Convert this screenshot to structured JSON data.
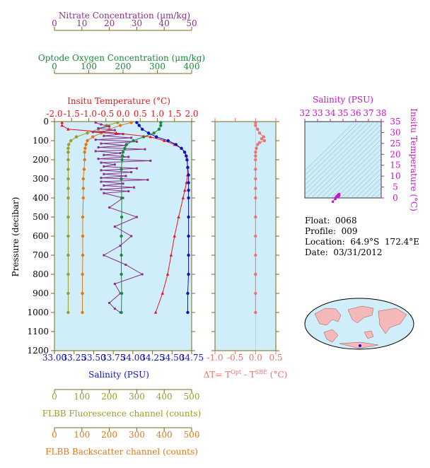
{
  "float_info": {
    "float": "Float:  0068",
    "profile": "Profile:  009",
    "location": "Location:  64.9°S  172.4°E",
    "date": "Date:  03/31/2012"
  },
  "colors": {
    "nitrate": "#8b2f8b",
    "oxygen": "#1a8a3a",
    "temperature": "#e8141e",
    "salinity": "#1212c0",
    "fluorescence": "#9c9c2c",
    "backscatter": "#e07818",
    "delta_t": "#f07070",
    "ts": "#c814c8",
    "panel_bg": "#cfeefa",
    "axis": "#7a6a1a"
  },
  "chart_data": [
    {
      "type": "line",
      "panel": "main-profile",
      "ylabel": "Pressure (decibar)",
      "ylim": [
        0,
        1200
      ],
      "yticks": [
        "0",
        "100",
        "200",
        "300",
        "400",
        "500",
        "600",
        "700",
        "800",
        "900",
        "1000",
        "1100",
        "1200"
      ],
      "axes": {
        "nitrate": {
          "label": "Nitrate Concentration (μm/kg)",
          "ticks": [
            "0",
            "10",
            "20",
            "30",
            "40",
            "50"
          ],
          "range": [
            0,
            50
          ]
        },
        "oxygen": {
          "label": "Optode Oxygen Concentration (μm/kg)",
          "ticks": [
            "0",
            "100",
            "200",
            "300",
            "400"
          ],
          "range": [
            0,
            400
          ]
        },
        "temperature": {
          "label": "Insitu Temperature (°C)",
          "ticks": [
            "-2.0",
            "-1.5",
            "-1.0",
            "-0.5",
            "0.0",
            "0.5",
            "1.0",
            "1.5",
            "2.0"
          ],
          "range": [
            -2.0,
            2.0
          ]
        },
        "salinity": {
          "label": "Salinity (PSU)",
          "ticks": [
            "33.00",
            "33.25",
            "33.50",
            "33.75",
            "34.00",
            "34.25",
            "34.50",
            "34.75"
          ],
          "range": [
            33.0,
            34.75
          ]
        },
        "fluorescence": {
          "label": "FLBB Fluorescence channel (counts)",
          "ticks": [
            "0",
            "100",
            "200",
            "300",
            "400",
            "500"
          ],
          "range": [
            0,
            500
          ]
        },
        "backscatter": {
          "label": "FLBB Backscatter channel (counts)",
          "ticks": [
            "0",
            "100",
            "200",
            "300",
            "400",
            "500"
          ],
          "range": [
            0,
            500
          ]
        }
      },
      "series": [
        {
          "name": "Salinity",
          "axis": "salinity",
          "pressure": [
            5,
            20,
            40,
            60,
            80,
            100,
            120,
            140,
            160,
            180,
            200,
            240,
            280,
            320,
            360,
            400,
            500,
            600,
            700,
            800,
            900,
            1000
          ],
          "values": [
            34.05,
            34.08,
            34.12,
            34.2,
            34.3,
            34.45,
            34.55,
            34.62,
            34.66,
            34.68,
            34.69,
            34.7,
            34.71,
            34.71,
            34.71,
            34.71,
            34.71,
            34.71,
            34.71,
            34.71,
            34.7,
            34.7
          ]
        },
        {
          "name": "Temperature",
          "axis": "temperature",
          "pressure": [
            5,
            20,
            40,
            60,
            80,
            100,
            120,
            140,
            160,
            180,
            200,
            240,
            280,
            320,
            360,
            400,
            500,
            600,
            700,
            800,
            900,
            1000
          ],
          "values": [
            -1.78,
            -1.78,
            -1.6,
            -0.2,
            0.8,
            1.2,
            1.5,
            1.7,
            1.8,
            1.85,
            1.87,
            1.88,
            1.88,
            1.85,
            1.8,
            1.75,
            1.62,
            1.5,
            1.4,
            1.3,
            1.15,
            0.95
          ]
        },
        {
          "name": "Oxygen",
          "axis": "oxygen",
          "pressure": [
            5,
            20,
            40,
            60,
            80,
            100,
            120,
            140,
            160,
            180,
            200,
            250,
            300,
            400,
            500,
            600,
            700,
            800,
            900,
            1000
          ],
          "values": [
            310,
            310,
            305,
            290,
            260,
            230,
            210,
            205,
            200,
            198,
            197,
            195,
            195,
            196,
            196,
            195,
            195,
            195,
            196,
            195
          ]
        },
        {
          "name": "Nitrate",
          "axis": "nitrate",
          "pressure": [
            5,
            15,
            25,
            35,
            45,
            55,
            65,
            75,
            85,
            95,
            105,
            115,
            125,
            135,
            145,
            155,
            165,
            175,
            185,
            195,
            205,
            215,
            225,
            235,
            245,
            255,
            265,
            275,
            285,
            295,
            305,
            315,
            325,
            335,
            345,
            355,
            365,
            375,
            400,
            450,
            500,
            550,
            600,
            650,
            700,
            750,
            800,
            850,
            900,
            950,
            980,
            1000
          ],
          "values": [
            15,
            17,
            20,
            16,
            22,
            14,
            25,
            18,
            28,
            15,
            30,
            17,
            26,
            16,
            33,
            15,
            24,
            18,
            27,
            16,
            35,
            17,
            22,
            18,
            30,
            17,
            28,
            18,
            26,
            17,
            34,
            17,
            25,
            18,
            29,
            17,
            27,
            18,
            25,
            20,
            30,
            22,
            28,
            24,
            18,
            26,
            32,
            22,
            24,
            20,
            22,
            24
          ]
        },
        {
          "name": "Fluorescence",
          "axis": "fluorescence",
          "pressure": [
            5,
            20,
            40,
            60,
            80,
            100,
            120,
            140,
            160,
            200,
            250,
            300,
            350,
            400,
            500,
            600,
            700,
            800,
            900,
            1000
          ],
          "values": [
            230,
            190,
            160,
            120,
            80,
            60,
            52,
            50,
            50,
            50,
            50,
            50,
            50,
            50,
            50,
            50,
            50,
            50,
            50,
            50
          ]
        },
        {
          "name": "Backscatter",
          "axis": "backscatter",
          "pressure": [
            5,
            20,
            40,
            60,
            80,
            100,
            120,
            140,
            160,
            200,
            250,
            300,
            350,
            400,
            500,
            600,
            700,
            800,
            900,
            1000
          ],
          "values": [
            280,
            240,
            200,
            170,
            140,
            120,
            115,
            112,
            110,
            110,
            108,
            105,
            105,
            105,
            103,
            103,
            103,
            102,
            102,
            102
          ]
        }
      ]
    },
    {
      "type": "line",
      "panel": "delta-t",
      "xlabel": "ΔT= T^Opt - T^SBE (°C)",
      "xticks": [
        "-1.0",
        "-0.5",
        "0.0",
        "0.5"
      ],
      "xlim": [
        -1.0,
        0.5
      ],
      "ylim": [
        0,
        1200
      ],
      "series": [
        {
          "name": "ΔT",
          "pressure": [
            5,
            20,
            40,
            60,
            80,
            90,
            100,
            110,
            120,
            140,
            160,
            180,
            200,
            250,
            300,
            350,
            400,
            500,
            600,
            700,
            800,
            900,
            1000
          ],
          "values": [
            0.0,
            0.0,
            0.05,
            0.1,
            0.2,
            0.15,
            0.22,
            0.1,
            0.05,
            0.02,
            0.0,
            0.0,
            0.0,
            0.0,
            0.0,
            0.0,
            0.0,
            0.0,
            0.0,
            0.0,
            0.0,
            0.0,
            0.0
          ]
        }
      ]
    },
    {
      "type": "scatter",
      "panel": "ts-diagram",
      "xlabel": "Salinity (PSU)",
      "ylabel": "Insitu Temperature (°C)",
      "xticks": [
        "32",
        "33",
        "34",
        "35",
        "36",
        "37",
        "38"
      ],
      "yticks": [
        "0",
        "5",
        "10",
        "15",
        "20",
        "25",
        "30",
        "35"
      ],
      "xlim": [
        32,
        38
      ],
      "ylim": [
        0,
        35
      ],
      "points": [
        [
          34.2,
          -1.7
        ],
        [
          34.4,
          0.0
        ],
        [
          34.5,
          0.8
        ],
        [
          34.6,
          1.3
        ],
        [
          34.65,
          1.6
        ],
        [
          34.7,
          1.8
        ],
        [
          34.7,
          1.4
        ],
        [
          34.7,
          1.0
        ],
        [
          34.6,
          0.4
        ],
        [
          34.4,
          -0.5
        ]
      ]
    }
  ]
}
